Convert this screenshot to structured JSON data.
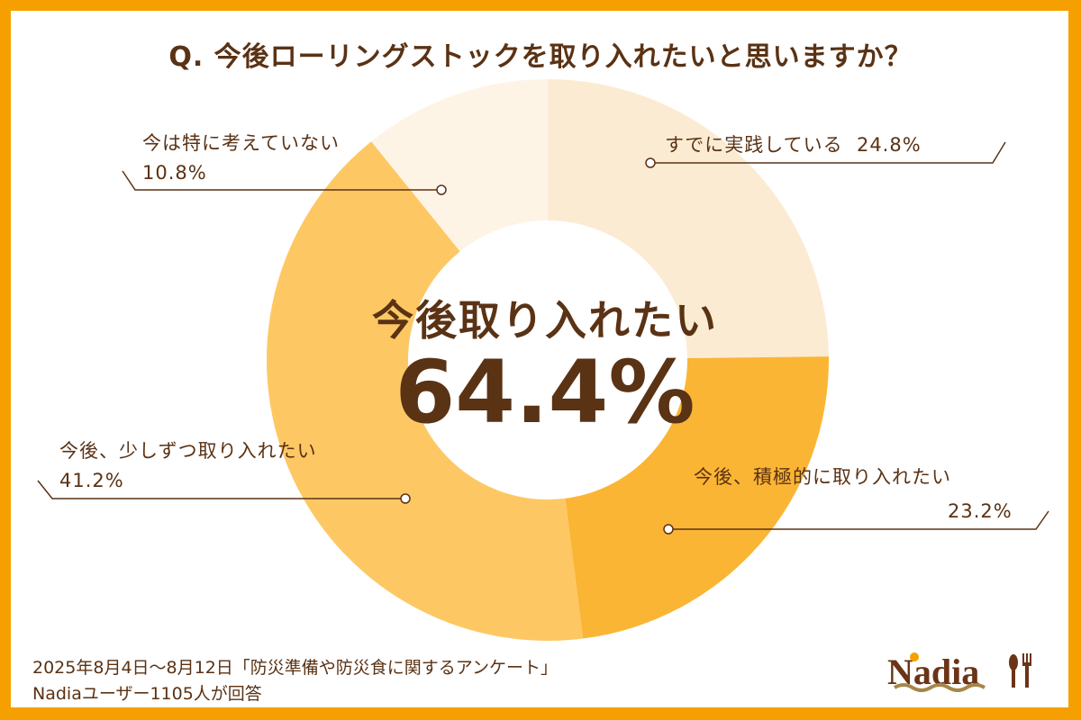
{
  "chart_data": {
    "type": "pie",
    "subtype": "donut",
    "title": "Q. 今後ローリングストックを取り入れたいと思いますか？",
    "start": "top",
    "direction": "clockwise",
    "slices": [
      {
        "label": "すでに実践している",
        "value": 24.8,
        "value_text": "24.8%",
        "color": "#fcebd3"
      },
      {
        "label": "今後、積極的に取り入れたい",
        "value": 23.2,
        "value_text": "23.2%",
        "color": "#fbb535"
      },
      {
        "label": "今後、少しずつ取り入れたい",
        "value": 41.2,
        "value_text": "41.2%",
        "color": "#fdc864"
      },
      {
        "label": "今は特に考えていない",
        "value": 10.8,
        "value_text": "10.8%",
        "color": "#fef4e6"
      }
    ],
    "center_label": "今後取り入れたい",
    "center_value": "64.4%"
  },
  "footer": {
    "line1": "2025年8月4日〜8月12日「防災準備や防災食に関するアンケート」",
    "line2": "Nadiaユーザー1105人が回答"
  },
  "logo": {
    "text": "Nadia"
  },
  "colors": {
    "border": "#f5a000",
    "text": "#5a3214"
  }
}
